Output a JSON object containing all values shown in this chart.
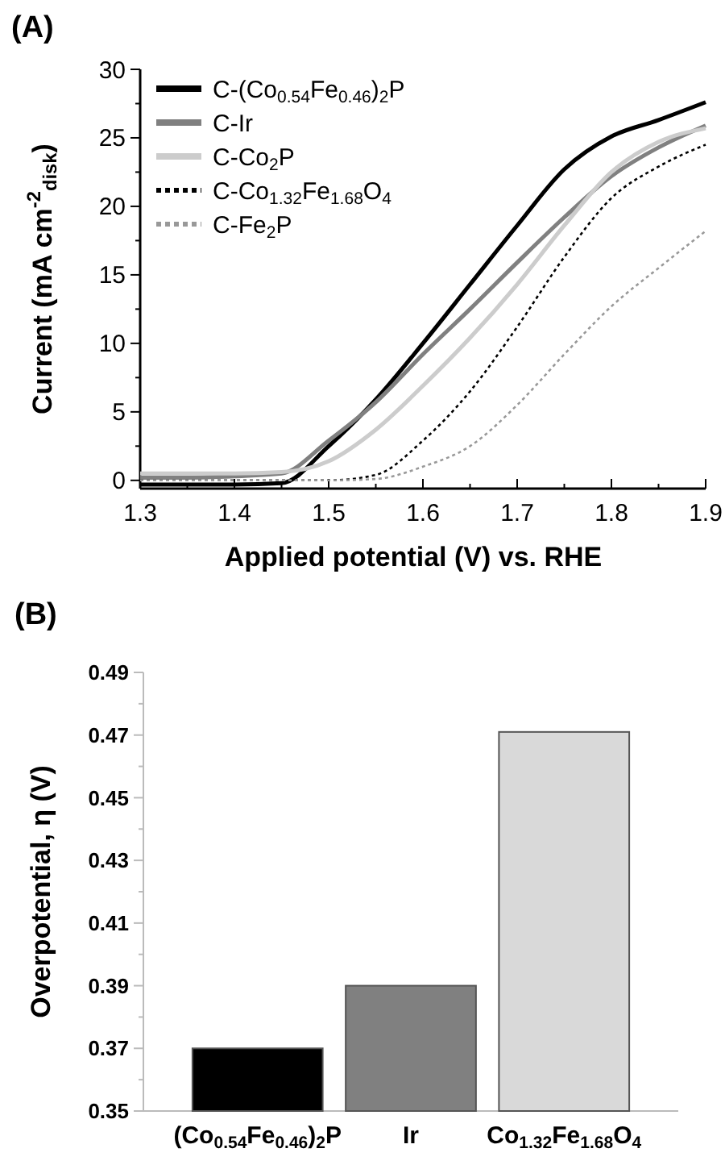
{
  "chart_data": [
    {
      "type": "line",
      "title": "(A)",
      "xlabel": "Applied potential (V) vs. RHE",
      "ylabel": "Current (mA cm$^{-2}$$_{disk}$)",
      "x": [
        1.3,
        1.35,
        1.4,
        1.45,
        1.5,
        1.55,
        1.6,
        1.65,
        1.7,
        1.75,
        1.8,
        1.85,
        1.9
      ],
      "series": [
        {
          "name": "C-(Co$_{0.54}$Fe$_{0.46}$)$_{2}$P",
          "color": "#000000",
          "line_style": "solid",
          "values": [
            -0.3,
            -0.3,
            -0.3,
            -0.2,
            2.5,
            5.9,
            10,
            14.3,
            18.6,
            22.7,
            25.1,
            26.3,
            27.6
          ]
        },
        {
          "name": "C-Ir",
          "color": "#808080",
          "line_style": "solid",
          "values": [
            0.2,
            0.2,
            0.3,
            0.5,
            2.9,
            5.7,
            9.2,
            12.5,
            15.9,
            19.2,
            22.2,
            24.3,
            25.9
          ]
        },
        {
          "name": "C-Co$_{2}$P",
          "color": "#cccccc",
          "line_style": "solid",
          "values": [
            0.5,
            0.5,
            0.5,
            0.6,
            1.4,
            3.7,
            6.9,
            10.4,
            14.3,
            18.6,
            22.5,
            24.7,
            25.7
          ]
        },
        {
          "name": "C-Co$_{1.32}$Fe$_{1.68}$O$_{4}$",
          "color": "#000000",
          "line_style": "dotted",
          "values": [
            0,
            0,
            0,
            0,
            0,
            0.4,
            2.9,
            6.5,
            11.2,
            16.3,
            20.6,
            22.9,
            24.5
          ]
        },
        {
          "name": "C-Fe$_{2}$P",
          "color": "#999999",
          "line_style": "dotted",
          "values": [
            0,
            0,
            0,
            0,
            0,
            0.1,
            1,
            2.5,
            5.5,
            9.2,
            12.7,
            15.5,
            18.2
          ]
        }
      ],
      "xlim": [
        1.3,
        1.9
      ],
      "xticks": [
        1.3,
        {
          "value": 1.35,
          "label": null
        },
        1.4,
        {
          "value": 1.45,
          "label": null
        },
        1.5,
        {
          "value": 1.55,
          "label": null
        },
        1.6,
        {
          "value": 1.65,
          "label": null
        },
        1.7,
        {
          "value": 1.75,
          "label": null
        },
        1.8,
        {
          "value": 1.85,
          "label": null
        },
        1.9
      ],
      "ylim": [
        -0.6,
        30
      ],
      "yticks": [
        0,
        {
          "value": 2.5,
          "label": null
        },
        5,
        {
          "value": 7.5,
          "label": null
        },
        10,
        {
          "value": 12.5,
          "label": null
        },
        15,
        {
          "value": 17.5,
          "label": null
        },
        20,
        {
          "value": 22.5,
          "label": null
        },
        25,
        {
          "value": 27.5,
          "label": null
        },
        30
      ],
      "legend": "top left",
      "grid": false
    },
    {
      "type": "bar",
      "title": "(B)",
      "ylabel": "Overpotential, η (V)",
      "categories": [
        "(Co$_{0.54}$Fe$_{0.46}$)$_{2}$P",
        "Ir",
        "Co$_{1.32}$Fe$_{1.68}$O$_{4}$"
      ],
      "values": [
        0.37,
        0.39,
        0.471
      ],
      "colors": [
        "#000000",
        "#808080",
        "#d9d9d9"
      ],
      "ylim": [
        0.35,
        0.49
      ],
      "yticks": [
        0.35,
        {
          "value": 0.36,
          "label": null
        },
        0.37,
        {
          "value": 0.38,
          "label": null
        },
        0.39,
        {
          "value": 0.4,
          "label": null
        },
        0.41,
        {
          "value": 0.42,
          "label": null
        },
        0.43,
        {
          "value": 0.44,
          "label": null
        },
        0.45,
        {
          "value": 0.46,
          "label": null
        },
        0.47,
        {
          "value": 0.48,
          "label": null
        },
        0.49
      ],
      "grid": false
    }
  ]
}
